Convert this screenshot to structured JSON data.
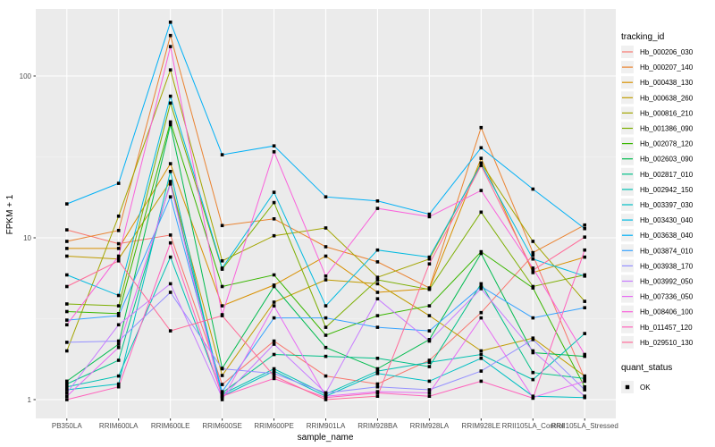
{
  "figure": {
    "legend": {
      "tracking_title": "tracking_id",
      "quant_title": "quant_status",
      "quant_items": [
        {
          "label": "OK",
          "marker": "black-filled-square"
        }
      ]
    },
    "colors": {
      "panel_background": "#EBEBEB",
      "grid_major": "#FFFFFF",
      "grid_minor": "#F5F5F5",
      "tick_text": "#4D4D4D",
      "tick_mark": "#333333",
      "point": "#000000",
      "legend_key_background": "#F0F0F0"
    }
  },
  "chart_data": {
    "type": "line",
    "title": "",
    "xlabel": "sample_name",
    "ylabel": "FPKM + 1",
    "yscale": "log10",
    "ylim": [
      0.79,
      260
    ],
    "y_major_ticks": [
      1,
      10,
      100
    ],
    "y_minor_ticks": [
      3.162,
      31.62
    ],
    "grid": true,
    "legend_position": "right",
    "point_shape": "filled-square-black",
    "categories": [
      "PB350LA",
      "RRIM600LA",
      "RRIM600LE",
      "RRIM600SE",
      "RRIM600PE",
      "RRIM901LA",
      "RRIM928BA",
      "RRIM928LA",
      "RRIM928LE",
      "RRII105LA_Control",
      "RRII105LA_Stressed"
    ],
    "series": [
      {
        "name": "Hb_000206_030",
        "color": "#F8766D",
        "values": [
          11.2,
          9.2,
          10.4,
          1.24,
          2.3,
          1.4,
          1.25,
          1.75,
          3.45,
          7.8,
          1.35
        ]
      },
      {
        "name": "Hb_000207_140",
        "color": "#EA8331",
        "values": [
          9.5,
          11.1,
          178,
          11.9,
          13.1,
          8.8,
          7.1,
          4.9,
          48,
          8.1,
          12
        ]
      },
      {
        "name": "Hb_000438_130",
        "color": "#D89000",
        "values": [
          8.6,
          8.6,
          28.7,
          3.8,
          5.1,
          7.7,
          4.6,
          4.85,
          31,
          6.1,
          7.6
        ]
      },
      {
        "name": "Hb_000638_260",
        "color": "#C09B00",
        "values": [
          7.7,
          7.4,
          22.3,
          1.41,
          4.0,
          5.5,
          5.2,
          3.3,
          2.0,
          2.4,
          1.4
        ]
      },
      {
        "name": "Hb_000816_210",
        "color": "#A3A500",
        "values": [
          2.0,
          13.6,
          109,
          7.2,
          10.3,
          11.5,
          5.7,
          7.4,
          29,
          9.5,
          4.05
        ]
      },
      {
        "name": "Hb_001386_090",
        "color": "#7CAE00",
        "values": [
          3.9,
          3.8,
          68,
          6.4,
          16.5,
          2.8,
          5.5,
          4.8,
          14.4,
          5.0,
          5.9
        ]
      },
      {
        "name": "Hb_002078_120",
        "color": "#39B600",
        "values": [
          3.5,
          3.4,
          52,
          5.0,
          5.9,
          2.5,
          3.3,
          3.8,
          8.2,
          4.9,
          1.2
        ]
      },
      {
        "name": "Hb_002603_090",
        "color": "#00BB4E",
        "values": [
          1.3,
          2.2,
          50,
          1.56,
          5.0,
          2.1,
          1.55,
          2.35,
          8.0,
          1.95,
          1.85
        ]
      },
      {
        "name": "Hb_002817_010",
        "color": "#00C087",
        "values": [
          1.25,
          1.75,
          22,
          1.1,
          1.9,
          1.85,
          1.8,
          1.6,
          5.2,
          1.47,
          1.35
        ]
      },
      {
        "name": "Hb_002942_150",
        "color": "#00C0B2",
        "values": [
          1.2,
          1.4,
          7.6,
          1.08,
          1.55,
          1.08,
          1.5,
          1.7,
          1.9,
          1.33,
          2.56
        ]
      },
      {
        "name": "Hb_003397_030",
        "color": "#00BFC4",
        "values": [
          1.15,
          1.25,
          25.7,
          1.05,
          1.5,
          1.05,
          1.45,
          1.3,
          1.8,
          1.05,
          1.03
        ]
      },
      {
        "name": "Hb_003430_040",
        "color": "#00BAE0",
        "values": [
          5.9,
          4.4,
          75,
          6.5,
          19.1,
          3.8,
          8.4,
          7.6,
          28.5,
          7.4,
          5.8
        ]
      },
      {
        "name": "Hb_003638_040",
        "color": "#00B0F6",
        "values": [
          16.2,
          21.7,
          215,
          32.6,
          37,
          17.9,
          16.9,
          14,
          36,
          20,
          11.4
        ]
      },
      {
        "name": "Hb_003874_010",
        "color": "#35A2FF",
        "values": [
          3.1,
          3.3,
          17.9,
          1.12,
          3.2,
          3.2,
          2.8,
          2.66,
          5.0,
          3.2,
          3.7
        ]
      },
      {
        "name": "Hb_003938_170",
        "color": "#9590FF",
        "values": [
          2.26,
          2.3,
          4.6,
          1.55,
          1.45,
          1.1,
          1.2,
          1.15,
          1.5,
          2.35,
          1.15
        ]
      },
      {
        "name": "Hb_003992_050",
        "color": "#C77CFF",
        "values": [
          1.1,
          2.9,
          5.2,
          1.03,
          2.2,
          1.1,
          4.2,
          2.3,
          4.85,
          2.0,
          1.05
        ]
      },
      {
        "name": "Hb_007336_050",
        "color": "#E76BF3",
        "values": [
          1.05,
          2.1,
          21.5,
          1.0,
          3.8,
          1.05,
          1.12,
          1.1,
          3.2,
          1.03,
          1.3
        ]
      },
      {
        "name": "Hb_008406_100",
        "color": "#FA62DB",
        "values": [
          2.9,
          7.7,
          152,
          3.35,
          34,
          5.8,
          15.2,
          13.5,
          19.6,
          6.5,
          1.9
        ]
      },
      {
        "name": "Hb_011457_120",
        "color": "#FF62BC",
        "values": [
          1.0,
          1.2,
          9.3,
          1.05,
          1.35,
          1.03,
          1.1,
          1.05,
          1.3,
          1.02,
          8.4
        ]
      },
      {
        "name": "Hb_029510_130",
        "color": "#FF6A98",
        "values": [
          5.0,
          7.2,
          2.66,
          3.3,
          1.4,
          1.0,
          1.05,
          6.9,
          28,
          6.3,
          10.1
        ]
      }
    ]
  }
}
